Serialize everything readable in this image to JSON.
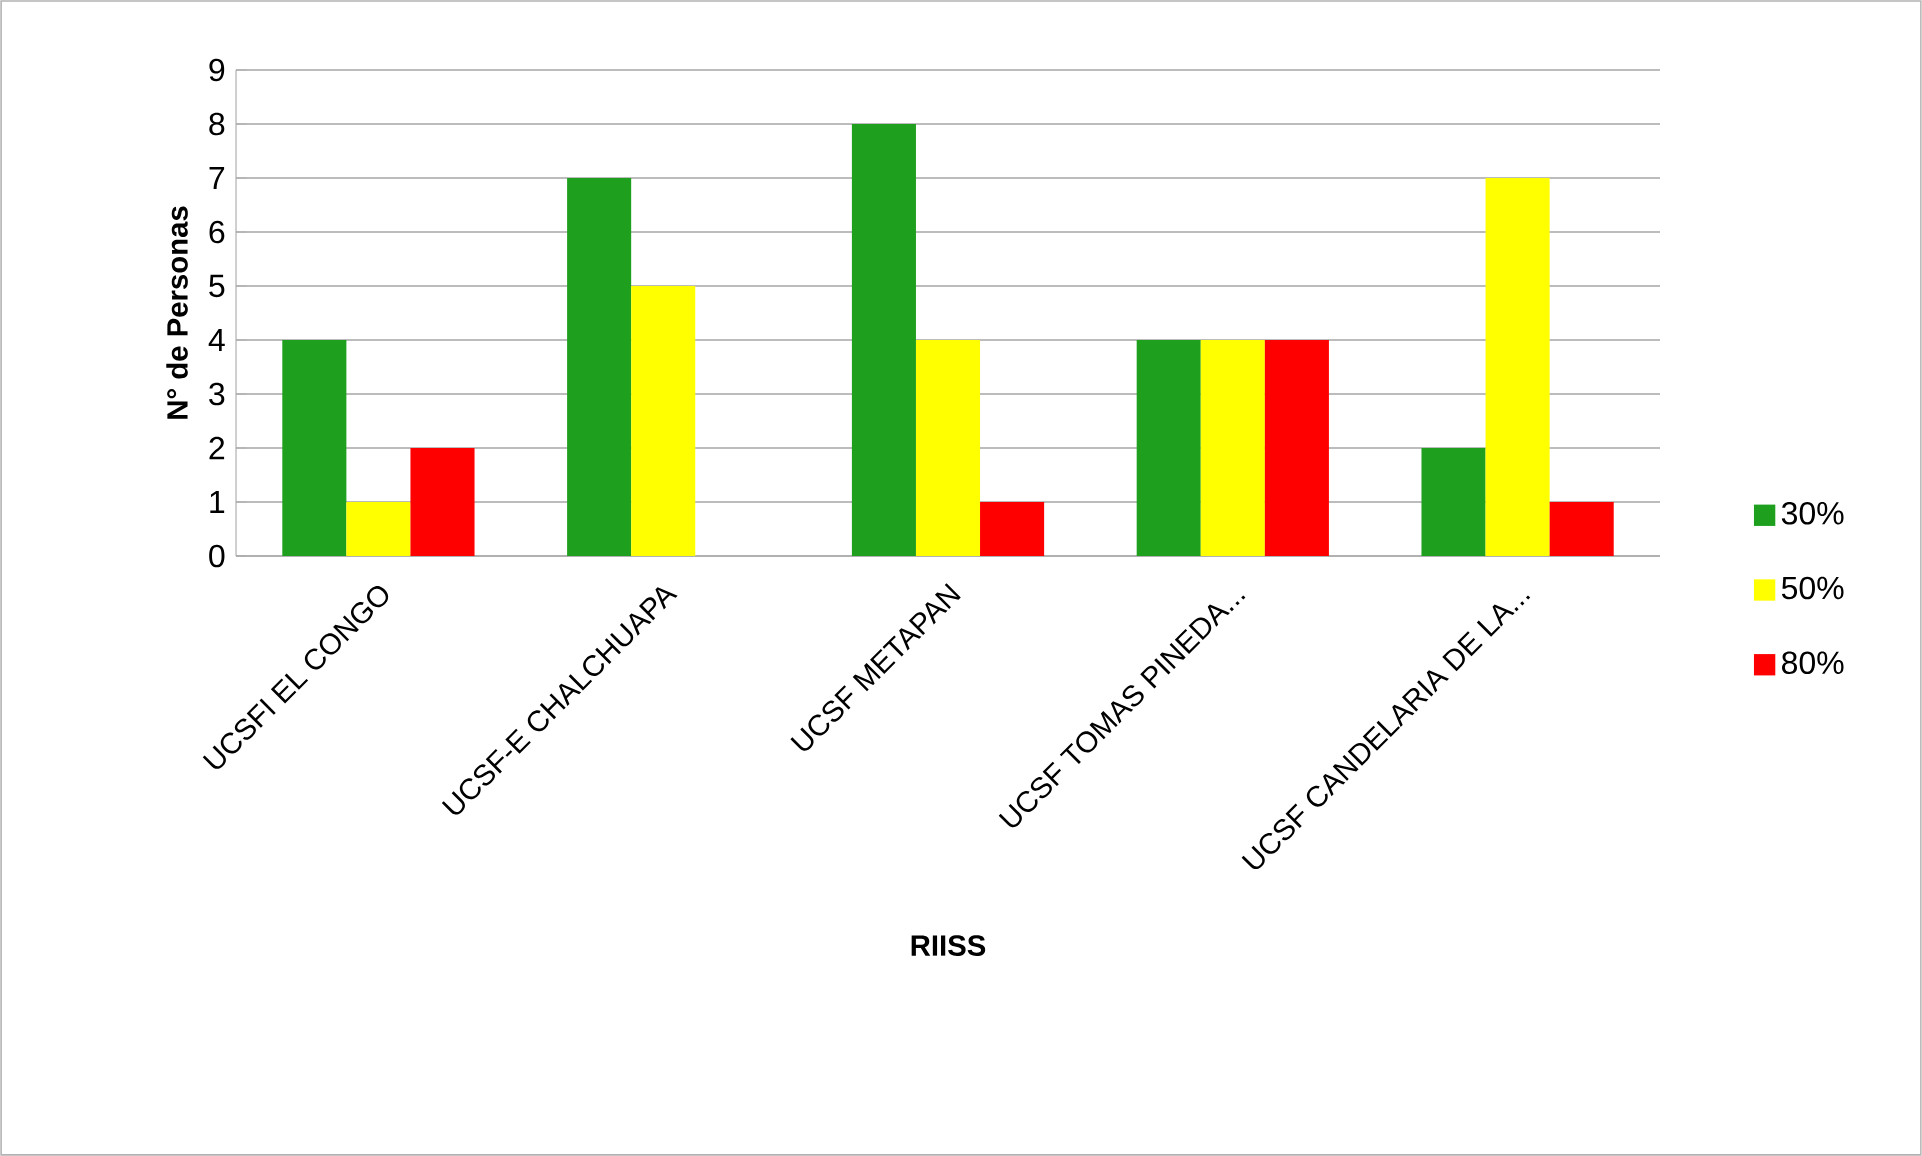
{
  "chart_data": {
    "type": "bar",
    "xlabel": "RIISS",
    "ylabel": "N° de Personas",
    "categories": [
      "UCSFI EL CONGO",
      "UCSF-E CHALCHUAPA",
      "UCSF  METAPAN",
      "UCSF TOMAS PINEDA...",
      "UCSF CANDELARIA DE LA..."
    ],
    "series": [
      {
        "name": "30%",
        "color": "#1ea01e",
        "values": [
          4,
          7,
          8,
          4,
          2
        ]
      },
      {
        "name": "50%",
        "color": "#ffff00",
        "values": [
          1,
          5,
          4,
          4,
          7
        ]
      },
      {
        "name": "80%",
        "color": "#ff0000",
        "values": [
          2,
          null,
          1,
          4,
          1
        ]
      }
    ],
    "ylim": [
      0,
      9
    ],
    "yticks": [
      0,
      1,
      2,
      3,
      4,
      5,
      6,
      7,
      8,
      9
    ],
    "grid": "y",
    "legend": "right"
  }
}
